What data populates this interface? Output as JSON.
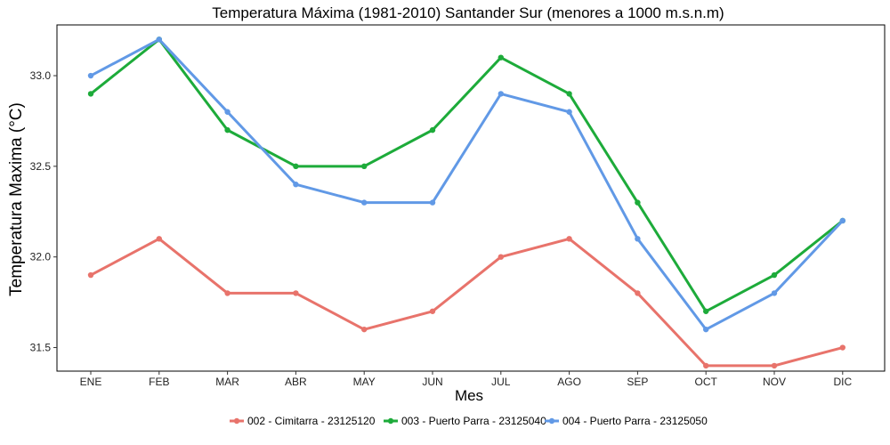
{
  "chart_data": {
    "type": "line",
    "title": "Temperatura Máxima (1981-2010) Santander Sur (menores a 1000 m.s.n.m)",
    "xlabel": "Mes",
    "ylabel": "Temperatura Maxima (°C)",
    "categories": [
      "ENE",
      "FEB",
      "MAR",
      "ABR",
      "MAY",
      "JUN",
      "JUL",
      "AGO",
      "SEP",
      "OCT",
      "NOV",
      "DIC"
    ],
    "ylim": [
      31.37,
      33.28
    ],
    "yticks": [
      31.5,
      32.0,
      32.5,
      33.0
    ],
    "ytick_labels": [
      "31.5",
      "32.0",
      "32.5",
      "33.0"
    ],
    "grid": false,
    "legend_position": "bottom",
    "series": [
      {
        "name": "002 - Cimitarra - 23125120",
        "color": "#E8736B",
        "values": [
          31.9,
          32.1,
          31.8,
          31.8,
          31.6,
          31.7,
          32.0,
          32.1,
          31.8,
          31.4,
          31.4,
          31.5
        ]
      },
      {
        "name": "003 - Puerto Parra - 23125040",
        "color": "#1DAB3A",
        "values": [
          32.9,
          33.2,
          32.7,
          32.5,
          32.5,
          32.7,
          33.1,
          32.9,
          32.3,
          31.7,
          31.9,
          32.2
        ]
      },
      {
        "name": "004 - Puerto Parra - 23125050",
        "color": "#6199E6",
        "values": [
          33.0,
          33.2,
          32.8,
          32.4,
          32.3,
          32.3,
          32.9,
          32.8,
          32.1,
          31.6,
          31.8,
          32.2
        ]
      }
    ]
  }
}
